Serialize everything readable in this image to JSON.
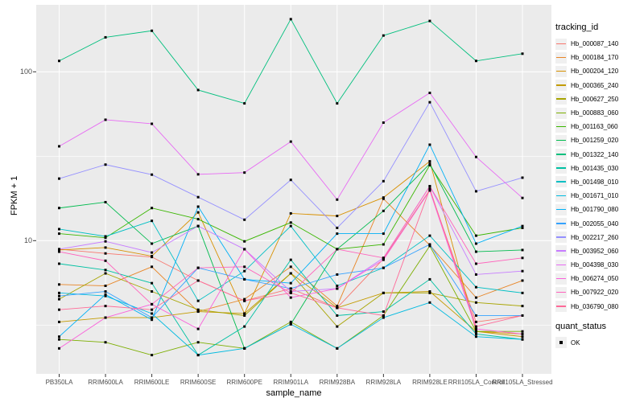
{
  "figure": {
    "x_axis_title": "sample_name",
    "y_axis_title": "FPKM + 1",
    "y_tick_labels": [
      "100",
      "10"
    ],
    "legend_tracking_title": "tracking_id",
    "legend_quant_title": "quant_status",
    "legend_quant_ok_label": "OK",
    "panel_bg_color": "#EBEBEB",
    "grid_color": "#FFFFFF",
    "marker_color": "#000000"
  },
  "chart_data": {
    "type": "line",
    "title": "",
    "xlabel": "sample_name",
    "ylabel": "FPKM + 1",
    "yscale": "log10",
    "ylim": [
      1.6,
      248
    ],
    "y_major_ticks": [
      10,
      100
    ],
    "y_minor_gridlines": [
      3.1623,
      31.623
    ],
    "grid": "white on gray panel (ggplot style)",
    "legend_position": "right",
    "legend_title": "tracking_id",
    "point_marker": "small black square (quant_status = OK)",
    "categories": [
      "PB350LA",
      "RRIM600LA",
      "RRIM600LE",
      "RRIM600SE",
      "RRIM600PE",
      "RRIM901LA",
      "RRIM928BA",
      "RRIM928LA",
      "RRIM928LE",
      "RRII105LA_Control",
      "RRII105LA_Stressed"
    ],
    "series": [
      {
        "name": "Hb_000087_140",
        "color": "#F8766D",
        "values": [
          8.9,
          8.4,
          8.0,
          5.8,
          4.4,
          5.2,
          4.0,
          7.8,
          20.0,
          3.3,
          3.6
        ]
      },
      {
        "name": "Hb_000184_170",
        "color": "#E88526",
        "values": [
          5.5,
          5.4,
          7.0,
          3.8,
          4.5,
          7.0,
          4.1,
          17.7,
          9.4,
          4.6,
          5.8
        ]
      },
      {
        "name": "Hb_000204_120",
        "color": "#D89000",
        "values": [
          8.8,
          9.1,
          8.1,
          14.7,
          3.7,
          14.5,
          14.0,
          18.0,
          29.5,
          2.9,
          2.8
        ]
      },
      {
        "name": "Hb_000365_240",
        "color": "#C39B00",
        "values": [
          3.3,
          3.5,
          3.5,
          3.8,
          3.7,
          6.4,
          4.0,
          4.9,
          5.0,
          2.9,
          2.7
        ]
      },
      {
        "name": "Hb_000627_250",
        "color": "#A8A400",
        "values": [
          4.5,
          6.4,
          5.0,
          3.9,
          3.6,
          6.4,
          3.1,
          4.9,
          4.9,
          4.3,
          4.1
        ]
      },
      {
        "name": "Hb_000883_060",
        "color": "#7CAE00",
        "values": [
          2.6,
          2.5,
          2.1,
          2.5,
          2.3,
          3.3,
          2.3,
          3.6,
          9.3,
          2.9,
          2.9
        ]
      },
      {
        "name": "Hb_001163_060",
        "color": "#39B600",
        "values": [
          11.0,
          10.4,
          15.6,
          13.4,
          9.9,
          12.8,
          8.9,
          9.5,
          28.0,
          10.7,
          11.9
        ]
      },
      {
        "name": "Hb_001259_020",
        "color": "#00BB4E",
        "values": [
          15.6,
          16.9,
          9.6,
          12.2,
          2.3,
          3.2,
          8.9,
          15.0,
          28.5,
          8.6,
          8.8
        ]
      },
      {
        "name": "Hb_001322_140",
        "color": "#00BF7D",
        "values": [
          116,
          160,
          175,
          78,
          65,
          205,
          65,
          164,
          200,
          116,
          128
        ]
      },
      {
        "name": "Hb_001435_030",
        "color": "#00C1A3",
        "values": [
          7.3,
          6.7,
          5.6,
          2.1,
          3.1,
          7.7,
          3.6,
          3.8,
          5.9,
          2.8,
          2.6
        ]
      },
      {
        "name": "Hb_001498_010",
        "color": "#00BFC4",
        "values": [
          11.7,
          10.6,
          13.1,
          4.4,
          6.6,
          12.2,
          5.4,
          6.9,
          10.7,
          5.3,
          4.9
        ]
      },
      {
        "name": "Hb_001671_010",
        "color": "#00BAE0",
        "values": [
          4.9,
          4.7,
          3.7,
          2.1,
          2.3,
          3.2,
          2.3,
          3.5,
          4.3,
          2.7,
          2.6
        ]
      },
      {
        "name": "Hb_001790_080",
        "color": "#00B0F6",
        "values": [
          2.7,
          4.8,
          3.4,
          15.9,
          5.9,
          5.6,
          11.0,
          11.0,
          37.0,
          9.6,
          12.2
        ]
      },
      {
        "name": "Hb_002055_040",
        "color": "#35A2FF",
        "values": [
          4.7,
          5.0,
          3.5,
          6.9,
          5.9,
          5.2,
          6.3,
          6.9,
          9.5,
          3.6,
          3.6
        ]
      },
      {
        "name": "Hb_002217_260",
        "color": "#9590FF",
        "values": [
          23.3,
          28.2,
          24.6,
          18.1,
          13.3,
          22.9,
          11.9,
          22.5,
          66.0,
          19.6,
          23.6
        ]
      },
      {
        "name": "Hb_003952_060",
        "color": "#C77CFF",
        "values": [
          8.9,
          9.9,
          8.5,
          12.2,
          8.9,
          5.0,
          5.2,
          7.9,
          21.0,
          6.3,
          6.6
        ]
      },
      {
        "name": "Hb_004398_030",
        "color": "#E76BF3",
        "values": [
          36.2,
          52.0,
          49.2,
          24.7,
          25.3,
          38.6,
          17.5,
          50.0,
          75.0,
          31.3,
          17.9
        ]
      },
      {
        "name": "Hb_006274_050",
        "color": "#FA62DB",
        "values": [
          2.3,
          3.5,
          4.2,
          3.0,
          8.9,
          4.6,
          5.2,
          7.7,
          19.8,
          3.0,
          2.8
        ]
      },
      {
        "name": "Hb_007922_020",
        "color": "#FF62BC",
        "values": [
          8.6,
          7.6,
          4.2,
          6.9,
          7.0,
          4.9,
          8.9,
          7.9,
          21.0,
          7.3,
          7.9
        ]
      },
      {
        "name": "Hb_036790_080",
        "color": "#FF6A98",
        "values": [
          3.9,
          4.1,
          3.9,
          5.8,
          4.4,
          4.9,
          4.0,
          3.6,
          20.3,
          3.1,
          3.6
        ]
      }
    ]
  }
}
